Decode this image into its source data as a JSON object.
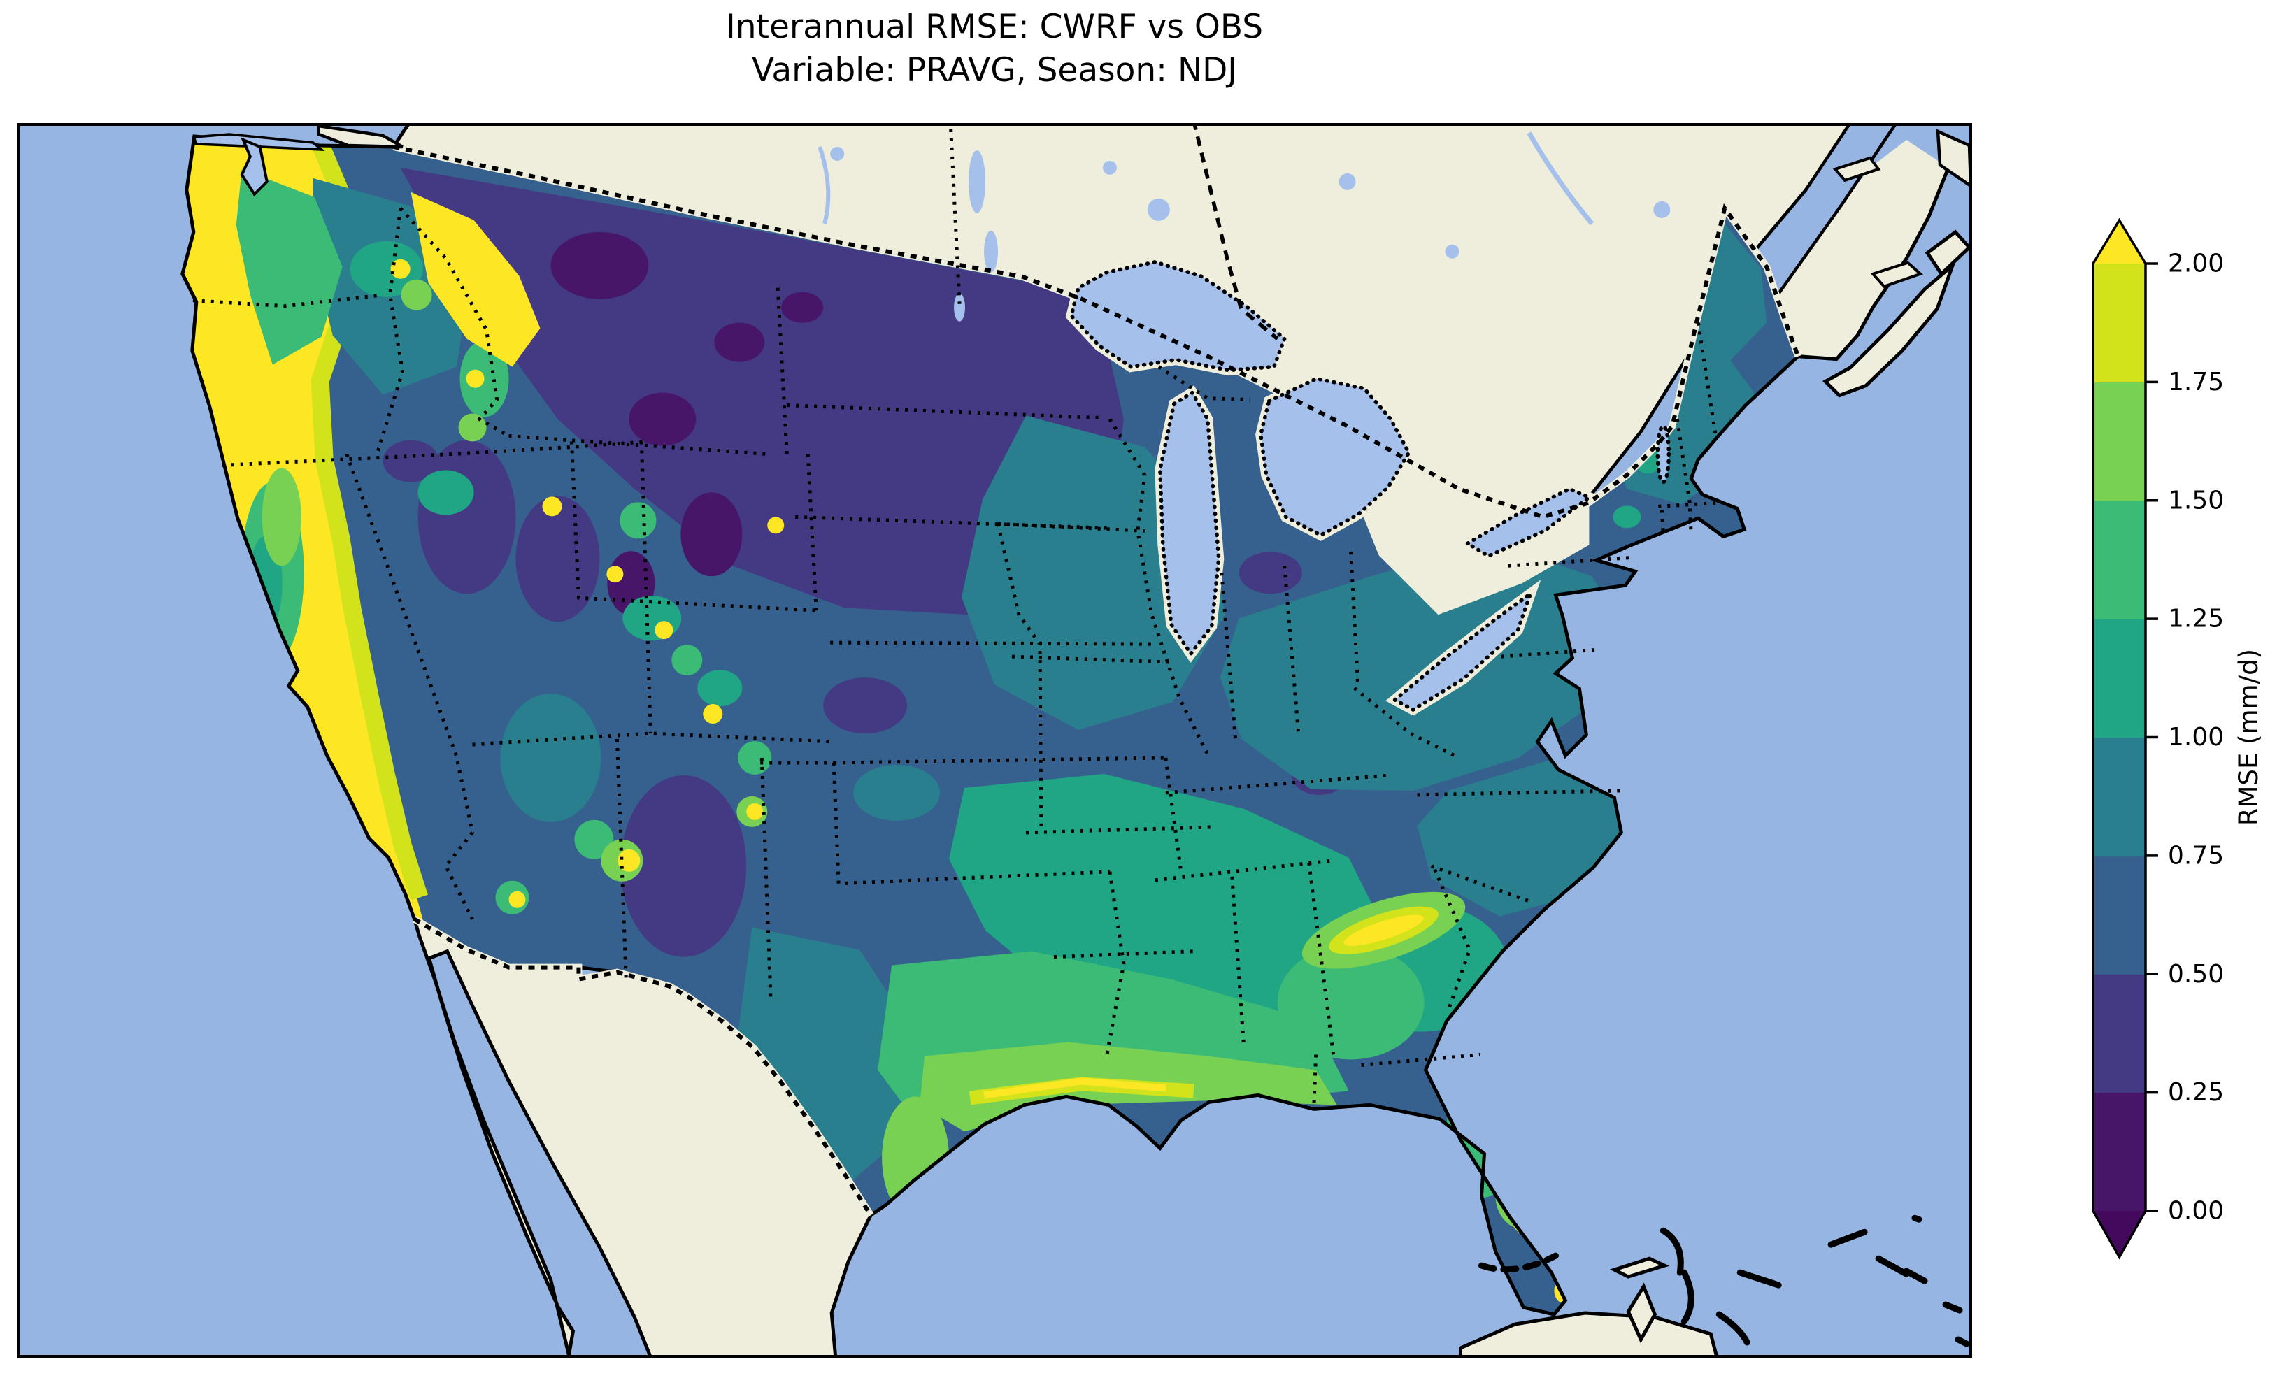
{
  "title": {
    "line1": "Interannual RMSE: CWRF vs OBS",
    "line2": "Variable: PRAVG, Season: NDJ"
  },
  "colorbar": {
    "label": "RMSE (mm/d)",
    "ticks": [
      "2.00",
      "1.75",
      "1.50",
      "1.25",
      "1.00",
      "0.75",
      "0.50",
      "0.25",
      "0.00"
    ],
    "bin_colors": [
      "#471669",
      "#443983",
      "#36618e",
      "#2a7f8e",
      "#21a685",
      "#3bbb75",
      "#78d152",
      "#d2e21b"
    ],
    "over_color": "#fde725",
    "under_color": "#43095c",
    "outline_color": "#000000",
    "tick_color": "#000000"
  },
  "map": {
    "colors": {
      "ocean": "#97b5e2",
      "land": "#efeedc",
      "lakes": "#a5c0eb",
      "coastline": "#000000",
      "borders": "#000000",
      "frame": "#000000"
    },
    "depicted_features": [
      "Continental United States filled RMSE contour field",
      "Canada land",
      "Mexico land",
      "Baja California and Gulf of California",
      "Great Lakes",
      "St. Lawrence River",
      "Nova Scotia",
      "Bahamas",
      "Cuba",
      "Pacific Ocean",
      "Atlantic Ocean",
      "Gulf of Mexico",
      "dotted state borders",
      "dashed national borders",
      "solid coastlines"
    ]
  },
  "chart_data": {
    "type": "heatmap",
    "title": "Interannual RMSE: CWRF vs OBS",
    "subtitle": "Variable: PRAVG, Season: NDJ",
    "metric": "RMSE",
    "variable": "PRAVG",
    "season": "NDJ",
    "units": "mm/d",
    "colormap": "viridis (discrete, 8 bins, extend both)",
    "levels": [
      0.0,
      0.25,
      0.5,
      0.75,
      1.0,
      1.25,
      1.5,
      1.75,
      2.0
    ],
    "colorbar_ticks": [
      2.0,
      1.75,
      1.5,
      1.25,
      1.0,
      0.75,
      0.5,
      0.25,
      0.0
    ],
    "legend_position": "right vertical colorbar",
    "domain": "Continental United States (CWRF regional climate model domain)",
    "regional_values": [
      {
        "region": "Pacific Northwest coast (W Washington / W Oregon)",
        "rmse_mm_d": ">2.0"
      },
      {
        "region": "California coastal ranges and Sierra Nevada",
        "rmse_mm_d": ">2.0"
      },
      {
        "region": "California Central Valley",
        "rmse_mm_d": "1.0-1.5"
      },
      {
        "region": "Interior Northwest (E Washington / Idaho)",
        "rmse_mm_d": "0.75-1.5 with local peaks >2.0"
      },
      {
        "region": "Northern Great Plains (Montana / Wyoming / Dakotas / Nebraska)",
        "rmse_mm_d": "0.1-0.5 (field minimum)"
      },
      {
        "region": "Great Basin (Nevada / Utah)",
        "rmse_mm_d": "0.25-0.75"
      },
      {
        "region": "Southern Rockies and Southwest highlands",
        "rmse_mm_d": "0.5-1.5 with isolated spots >2.0"
      },
      {
        "region": "Upper Midwest and Great Lakes states",
        "rmse_mm_d": "0.5-1.0"
      },
      {
        "region": "Ohio Valley and Mid-Atlantic",
        "rmse_mm_d": "0.5-1.0"
      },
      {
        "region": "New England",
        "rmse_mm_d": "0.75-1.25"
      },
      {
        "region": "Tennessee and Lower Mississippi Valley",
        "rmse_mm_d": "1.0-1.5"
      },
      {
        "region": "Southeast (Georgia / Alabama / Carolinas)",
        "rmse_mm_d": "1.0-1.75 with yellow streaks near 2.0"
      },
      {
        "region": "Gulf Coast strip (Texas to Florida panhandle)",
        "rmse_mm_d": "1.5->2.0"
      },
      {
        "region": "Central and South Texas",
        "rmse_mm_d": "0.5-1.25"
      },
      {
        "region": "Florida peninsula",
        "rmse_mm_d": "1.0-1.75, >2.0 at southern tip"
      }
    ]
  }
}
